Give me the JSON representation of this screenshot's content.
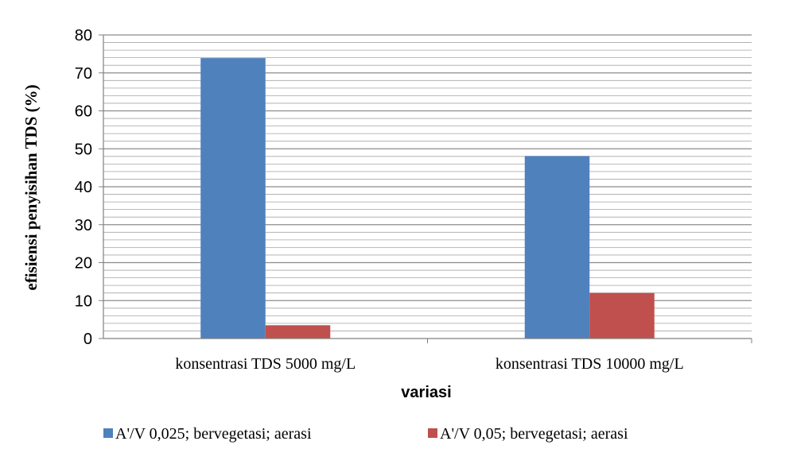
{
  "chart_data": {
    "type": "bar",
    "categories": [
      "konsentrasi TDS 5000 mg/L",
      "konsentrasi TDS 10000 mg/L"
    ],
    "series": [
      {
        "name": "A'/V 0,025; bervegetasi; aerasi",
        "values": [
          73.9,
          48.1
        ],
        "color": "#4F81BD"
      },
      {
        "name": "A'/V 0,05; bervegetasi; aerasi",
        "values": [
          3.5,
          12.0
        ],
        "color": "#C0504D"
      }
    ],
    "xlabel": "variasi",
    "ylabel": "efisiensi penyisihan  TDS (%)",
    "ylim": [
      0,
      80
    ],
    "yticks": [
      0,
      10,
      20,
      30,
      40,
      50,
      60,
      70,
      80
    ],
    "minor_gridline_step": 2,
    "grid": true,
    "legend_position": "bottom"
  }
}
